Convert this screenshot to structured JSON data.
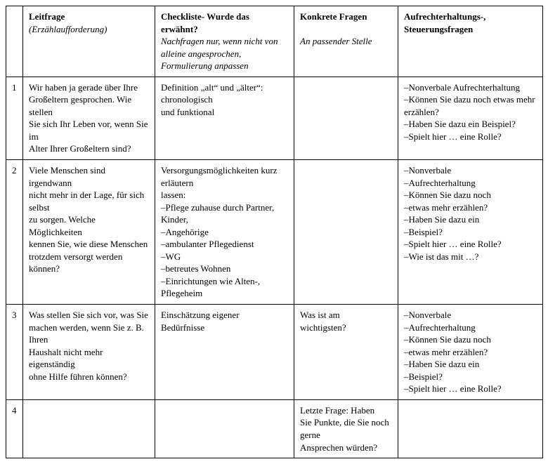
{
  "headers": {
    "num": "",
    "leit_main": "Leitfrage",
    "leit_sub": "(Erzählaufforderung)",
    "check_main": "Checkliste- Wurde das erwähnt?",
    "check_sub": "Nachfragen nur, wenn nicht von alleine angesprochen, Formulierung anpassen",
    "konk_main": "Konkrete Fragen",
    "konk_sub": "An passender Stelle",
    "auf_main": "Aufrechterhaltungs-, Steuerungsfragen",
    "auf_sub": ""
  },
  "rows": [
    {
      "num": "1",
      "leit": [
        "Wir haben ja gerade über Ihre",
        "Großeltern gesprochen. Wie stellen",
        "Sie sich Ihr Leben vor, wenn Sie im",
        "Alter Ihrer Großeltern sind?"
      ],
      "check": [
        "Definition „alt“ und „älter“:",
        "chronologisch",
        "und funktional"
      ],
      "konk": [],
      "auf": [
        "–Nonverbale Aufrechterhaltung",
        "–Können Sie dazu noch etwas mehr erzählen?",
        "–Haben Sie dazu ein Beispiel?",
        "–Spielt hier … eine Rolle?"
      ]
    },
    {
      "num": "2",
      "leit": [
        "Viele Menschen sind irgendwann",
        "nicht mehr in der Lage, für sich selbst",
        "zu sorgen. Welche Möglichkeiten",
        "kennen Sie, wie diese Menschen",
        "trotzdem versorgt werden können?"
      ],
      "check": [
        "Versorgungsmöglichkeiten kurz erläutern",
        "lassen:",
        "–Pflege zuhause durch Partner, Kinder,",
        "–Angehörige",
        "–ambulanter Pflegedienst",
        "–WG",
        "–betreutes Wohnen",
        "–Einrichtungen wie Alten-, Pflegeheim"
      ],
      "konk": [],
      "auf": [
        "–Nonverbale",
        "–Aufrechterhaltung",
        "–Können Sie dazu noch",
        "–etwas mehr erzählen?",
        "–Haben Sie dazu ein",
        "–Beispiel?",
        "–Spielt hier … eine Rolle?",
        "–Wie ist das mit …?"
      ]
    },
    {
      "num": "3",
      "leit": [
        "Was stellen Sie sich vor, was Sie",
        "machen werden, wenn Sie z. B. Ihren",
        "Haushalt nicht mehr eigenständig",
        "ohne Hilfe führen können?"
      ],
      "check": [
        "Einschätzung eigener",
        "Bedürfnisse"
      ],
      "konk": [
        "Was ist am",
        "wichtigsten?"
      ],
      "auf": [
        "–Nonverbale",
        "–Aufrechterhaltung",
        "–Können Sie dazu noch",
        "–etwas mehr erzählen?",
        "–Haben Sie dazu ein",
        "–Beispiel?",
        "–Spielt hier … eine Rolle?"
      ]
    },
    {
      "num": "4",
      "leit": [],
      "check": [],
      "konk": [
        "Letzte Frage: Haben",
        "Sie Punkte, die Sie noch",
        "gerne",
        "Ansprechen würden?"
      ],
      "auf": []
    }
  ]
}
